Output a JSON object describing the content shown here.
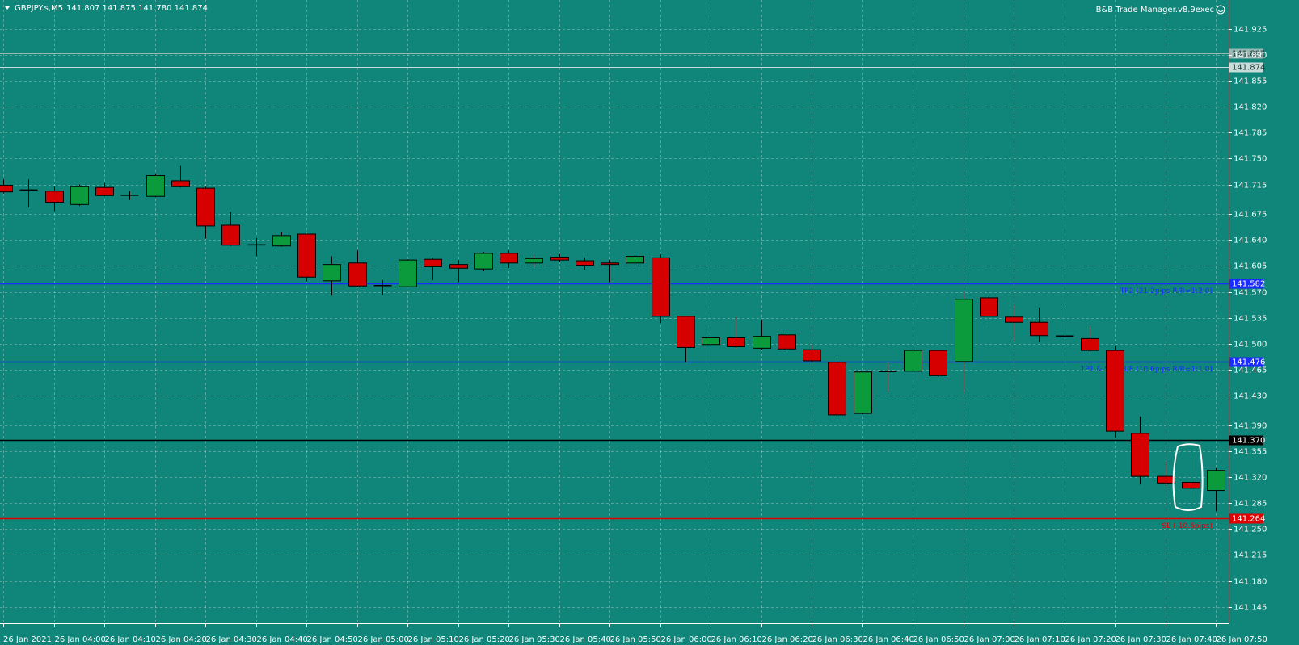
{
  "chart_data": {
    "type": "candlestick",
    "title": "GBPJPY.s,M5",
    "ohlc_header": "141.807 141.875 141.780 141.874",
    "indicator": "B&B Trade Manager.v8.9exec",
    "categories": [
      "26 Jan 2021",
      null,
      "26 Jan 04:00",
      null,
      "26 Jan 04:10",
      null,
      "26 Jan 04:20",
      null,
      "26 Jan 04:30",
      null,
      "26 Jan 04:40",
      null,
      "26 Jan 04:50",
      null,
      "26 Jan 05:00",
      null,
      "26 Jan 05:10",
      null,
      "26 Jan 05:20",
      null,
      "26 Jan 05:30",
      null,
      "26 Jan 05:40",
      null,
      "26 Jan 05:50",
      null,
      "26 Jan 06:00",
      null,
      "26 Jan 06:10",
      null,
      "26 Jan 06:20",
      null,
      "26 Jan 06:30",
      null,
      "26 Jan 06:40",
      null,
      "26 Jan 06:50",
      null,
      "26 Jan 07:00",
      null,
      "26 Jan 07:10",
      null,
      "26 Jan 07:20",
      null,
      "26 Jan 07:30",
      null,
      "26 Jan 07:40",
      null,
      "26 Jan 07:50"
    ],
    "open": [
      141.714,
      141.707,
      141.706,
      141.688,
      141.711,
      141.7,
      141.699,
      141.72,
      141.71,
      141.66,
      141.634,
      141.632,
      141.648,
      141.585,
      141.609,
      141.578,
      141.577,
      141.614,
      141.607,
      141.601,
      141.622,
      141.609,
      141.617,
      141.612,
      141.609,
      141.609,
      141.616,
      141.537,
      141.499,
      141.508,
      141.494,
      141.512,
      141.492,
      141.475,
      141.406,
      141.462,
      141.463,
      141.491,
      141.476,
      141.562,
      141.536,
      141.529,
      141.511,
      141.507,
      141.491,
      141.379,
      141.321,
      141.313,
      141.302
    ],
    "high": [
      141.722,
      141.722,
      141.712,
      141.715,
      141.717,
      141.706,
      141.729,
      141.74,
      141.712,
      141.678,
      141.643,
      141.65,
      141.648,
      141.618,
      141.626,
      141.586,
      141.614,
      141.616,
      141.613,
      141.624,
      141.626,
      141.62,
      141.621,
      141.616,
      141.613,
      141.62,
      141.621,
      141.537,
      141.515,
      141.536,
      141.532,
      141.516,
      141.499,
      141.481,
      141.462,
      141.474,
      141.495,
      141.491,
      141.57,
      141.564,
      141.553,
      141.549,
      141.55,
      141.524,
      141.498,
      141.402,
      141.341,
      141.351,
      141.332
    ],
    "low": [
      141.703,
      141.684,
      141.679,
      141.686,
      141.699,
      141.694,
      141.698,
      141.711,
      141.642,
      141.632,
      141.618,
      141.631,
      141.584,
      141.565,
      141.576,
      141.566,
      141.576,
      141.586,
      141.583,
      141.598,
      141.602,
      141.604,
      141.61,
      141.6,
      141.583,
      141.601,
      141.528,
      141.475,
      141.464,
      141.494,
      141.492,
      141.491,
      141.475,
      141.402,
      141.405,
      141.435,
      141.461,
      141.455,
      141.434,
      141.52,
      141.503,
      141.502,
      141.501,
      141.489,
      141.373,
      141.31,
      141.308,
      141.277,
      141.274
    ],
    "close": [
      141.705,
      141.708,
      141.691,
      141.712,
      141.7,
      141.701,
      141.727,
      141.712,
      141.659,
      141.633,
      141.633,
      141.646,
      141.59,
      141.607,
      141.578,
      141.579,
      141.613,
      141.604,
      141.602,
      141.622,
      141.609,
      141.615,
      141.613,
      141.606,
      141.607,
      141.618,
      141.537,
      141.495,
      141.508,
      141.496,
      141.51,
      141.493,
      141.477,
      141.404,
      141.462,
      141.463,
      141.491,
      141.457,
      141.56,
      141.537,
      141.529,
      141.511,
      141.51,
      141.491,
      141.382,
      141.321,
      141.312,
      141.305,
      141.329
    ],
    "up_color": "#0b9a3c",
    "down_color": "#d60000",
    "ylim": [
      141.125,
      141.964
    ],
    "yticks": [
      141.925,
      {
        "value": 141.89,
        "label": "141.890"
      },
      141.855,
      {
        "value": 141.82,
        "label": "141.820"
      },
      141.785,
      {
        "value": 141.75,
        "label": "141.750"
      },
      141.715,
      141.675,
      {
        "value": 141.64,
        "label": "141.640"
      },
      141.605,
      {
        "value": 141.57,
        "label": "141.570"
      },
      141.535,
      {
        "value": 141.5,
        "label": "141.500"
      },
      141.465,
      {
        "value": 141.43,
        "label": "141.430"
      },
      {
        "value": 141.39,
        "label": "141.390"
      },
      141.355,
      {
        "value": 141.32,
        "label": "141.320"
      },
      141.285,
      {
        "value": 141.25,
        "label": "141.250"
      },
      141.215,
      {
        "value": 141.18,
        "label": "141.180"
      },
      141.145
    ],
    "grid": true,
    "levels": [
      {
        "value": 141.582,
        "text": "TP2 (21.2pips R/R=1:2.0)",
        "color": "#1a2cff"
      },
      {
        "value": 141.476,
        "text": "TP1 & SL->B/E (10.6pips R/R=1:1.0)",
        "color": "#1a2cff"
      },
      {
        "value": 141.37,
        "price_label": "141.370",
        "color": "#000000"
      },
      {
        "value": 141.264,
        "text": "SL (-10.6pips)",
        "color": "#e00000"
      }
    ],
    "price_lines": [
      {
        "value": 141.892,
        "color": "#9ab8b4"
      },
      {
        "value": 141.874,
        "color": "#c8dcda"
      }
    ]
  }
}
